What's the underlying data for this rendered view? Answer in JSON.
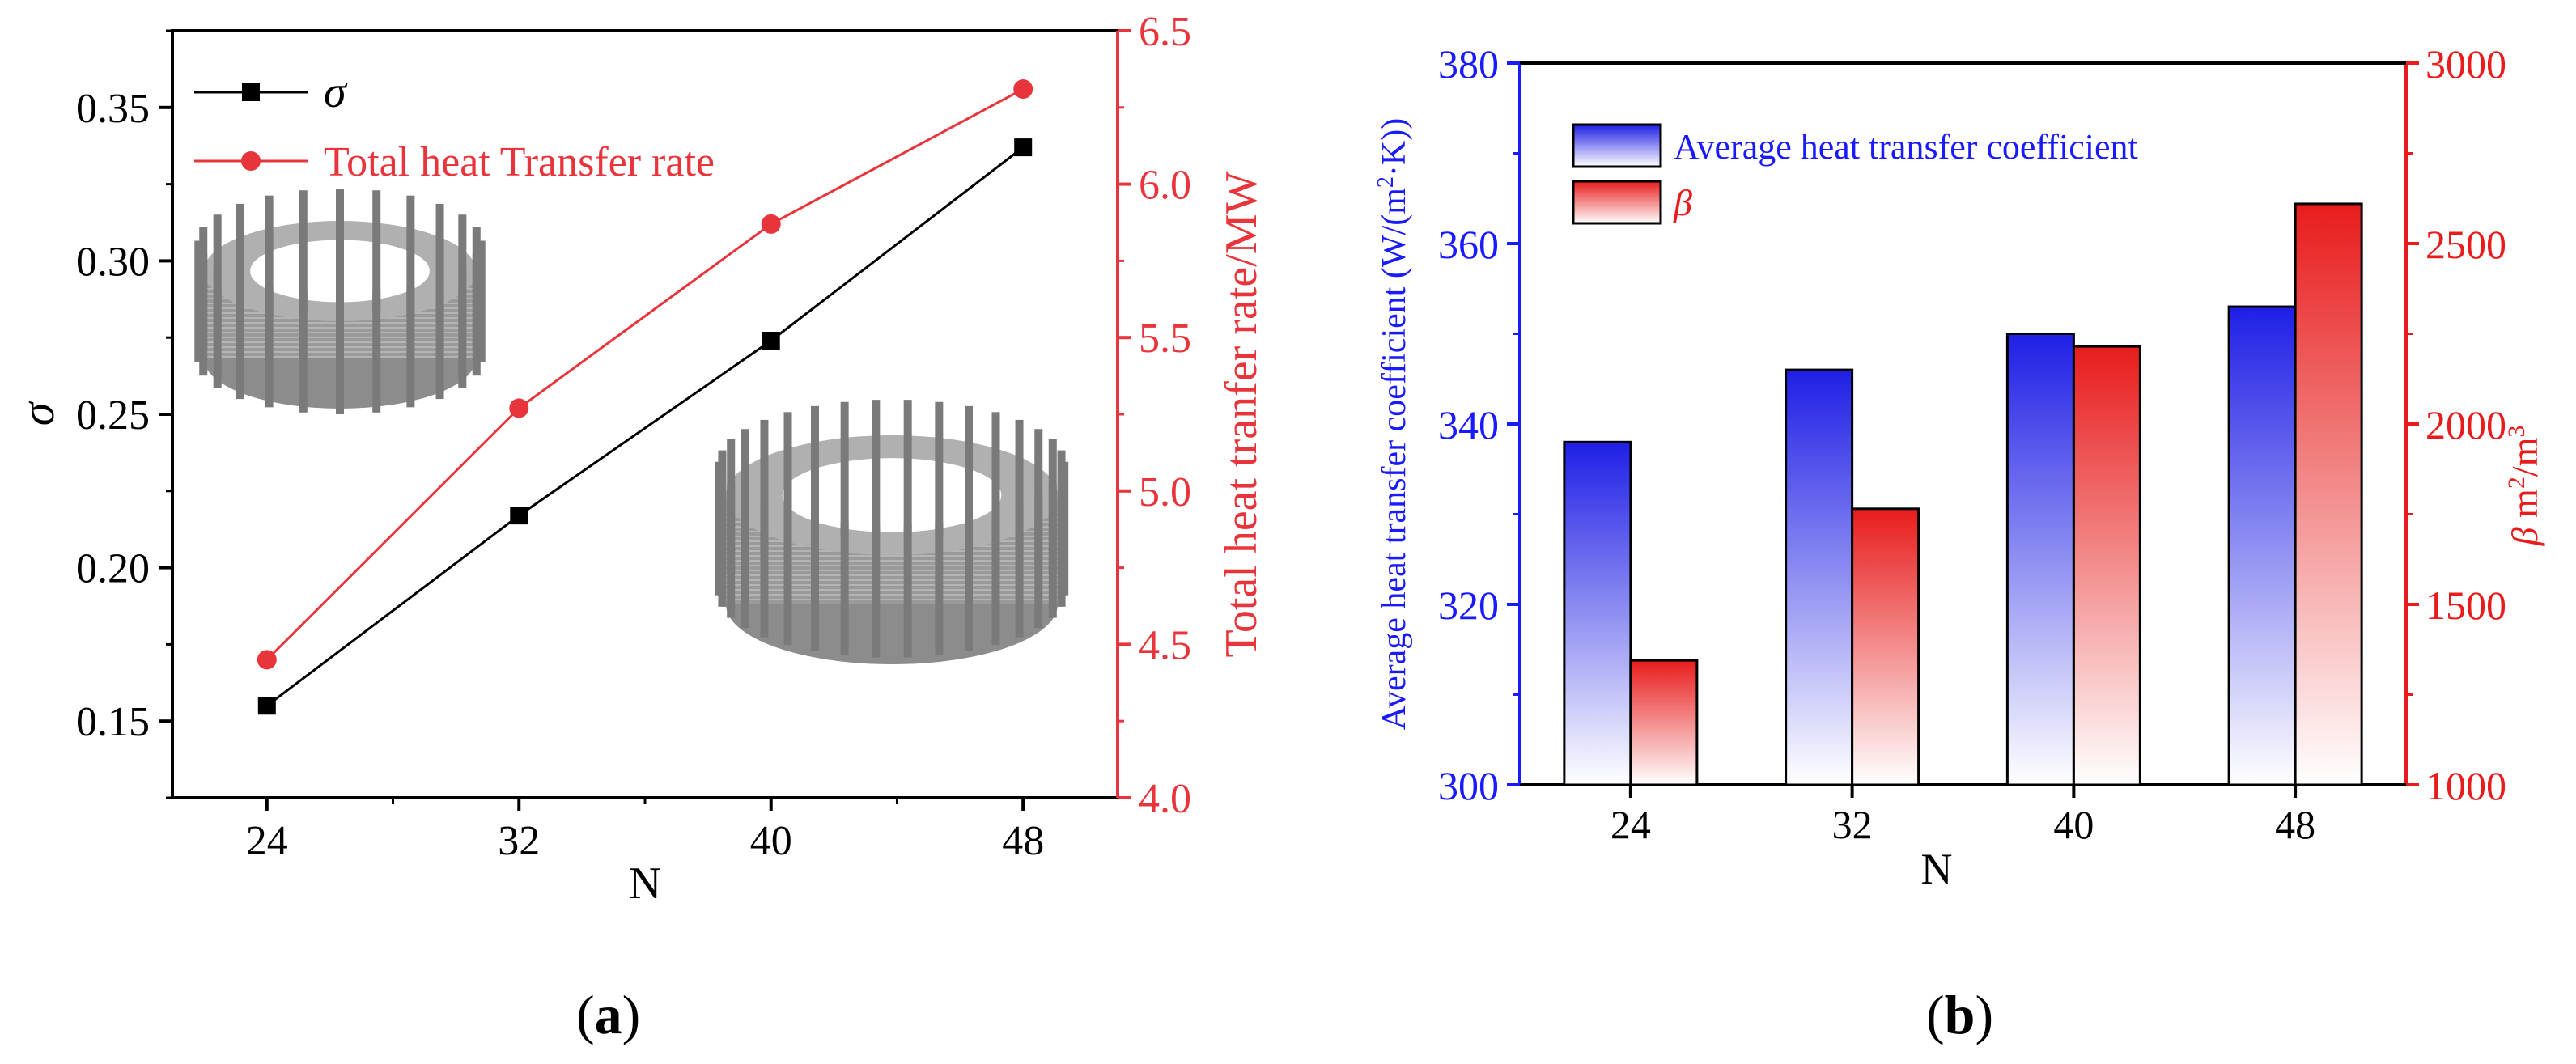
{
  "colors": {
    "black": "#000000",
    "red": "#e8343b",
    "blue": "#1a1aff",
    "bar_blue": "#1f1fe6",
    "bar_red": "#e81c1c"
  },
  "panel_a": {
    "caption_letter": "a",
    "images": [
      "coil-24-pillar-ring",
      "coil-48-pillar-ring"
    ]
  },
  "panel_b": {
    "caption_letter": "b"
  },
  "chart_data": [
    {
      "type": "line",
      "panel": "a",
      "xlabel": "N",
      "ylabel": "σ",
      "y2label": "Total heat tranfer rate/MW",
      "categories": [
        "24",
        "32",
        "40",
        "48"
      ],
      "x": [
        24,
        32,
        40,
        48
      ],
      "xlim": [
        21,
        22
      ],
      "ylim": [
        0.125,
        0.375
      ],
      "yticks": [
        "0.15",
        "0.20",
        "0.25",
        "0.30",
        "0.35"
      ],
      "y2lim": [
        4.0,
        6.5
      ],
      "y2ticks": [
        "4.0",
        "4.5",
        "5.0",
        "5.5",
        "6.0",
        "6.5"
      ],
      "series": [
        {
          "name": "σ",
          "axis": "left",
          "marker": "square",
          "color": "#000000",
          "values": [
            0.155,
            0.217,
            0.274,
            0.337
          ]
        },
        {
          "name": "Total heat Transfer rate",
          "axis": "right",
          "marker": "circle",
          "color": "#e8343b",
          "values": [
            4.45,
            5.27,
            5.87,
            6.31
          ]
        }
      ],
      "legend_position": "top-left",
      "grid": false
    },
    {
      "type": "bar",
      "panel": "b",
      "xlabel": "N",
      "ylabel": "Average heat transfer coefficient (W/(m²·K))",
      "y2label": "β m²/m³",
      "categories": [
        "24",
        "32",
        "40",
        "48"
      ],
      "ylim": [
        300,
        380
      ],
      "yticks": [
        "300",
        "320",
        "340",
        "360",
        "380"
      ],
      "y2lim": [
        1000,
        3000
      ],
      "y2ticks": [
        "1000",
        "1500",
        "2000",
        "2500",
        "3000"
      ],
      "series": [
        {
          "name": "Average heat transfer coefficient",
          "axis": "left",
          "color": "#1f1fe6",
          "values": [
            338,
            346,
            350,
            353
          ]
        },
        {
          "name": "β",
          "axis": "right",
          "color": "#e81c1c",
          "values": [
            1345,
            1765,
            2215,
            2610
          ]
        }
      ],
      "legend_position": "top-left",
      "grid": false
    }
  ]
}
